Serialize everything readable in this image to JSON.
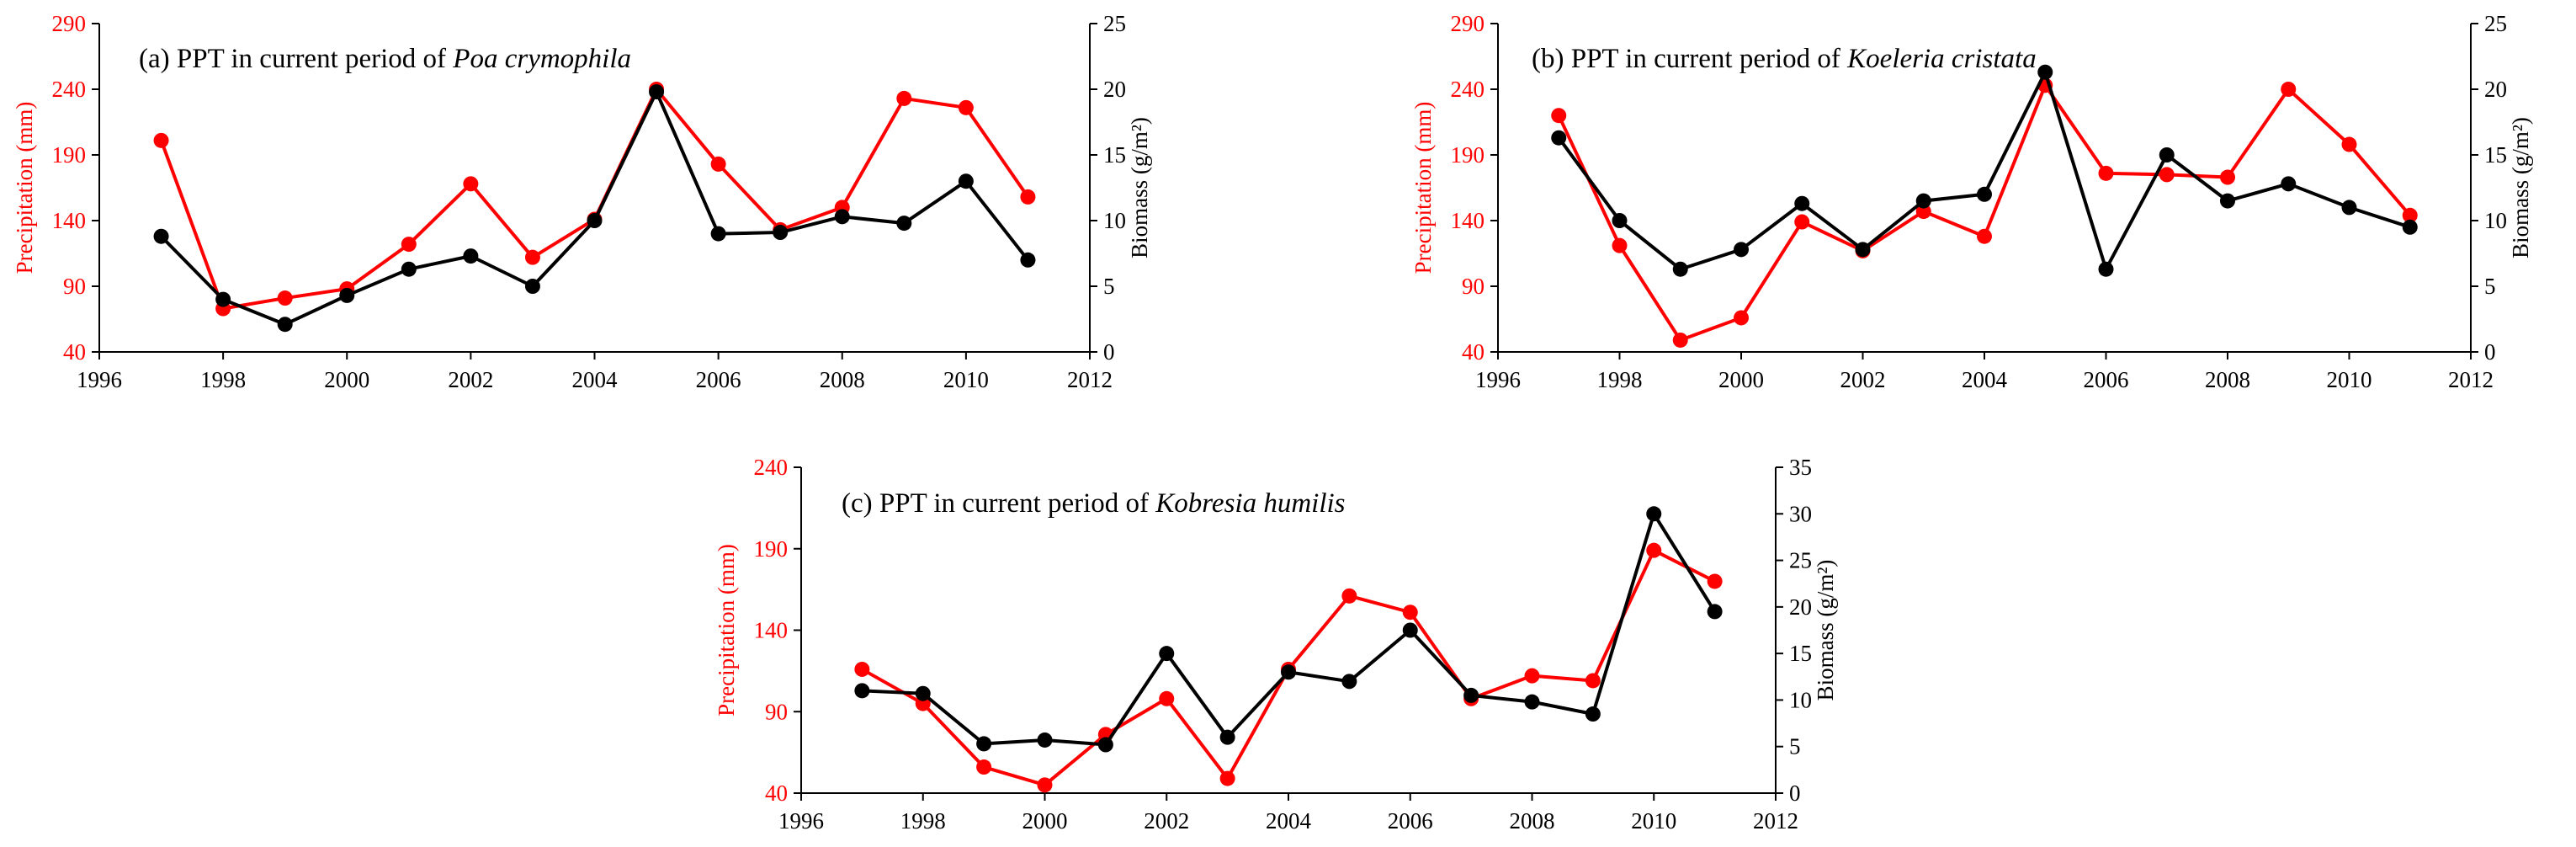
{
  "colors": {
    "precipitation": "#ff0000",
    "biomass": "#000000",
    "axes": "#000000"
  },
  "chart_data": [
    {
      "type": "line",
      "title_prefix": "(a) PPT in current period of",
      "title_species": "Poa crymophila",
      "ylabel_left": "Precipitation (mm)",
      "ylabel_right": "Biomass (g/m²)",
      "xlim": [
        1996,
        2012
      ],
      "xticks": [
        1996,
        1998,
        2000,
        2002,
        2004,
        2006,
        2008,
        2010,
        2012
      ],
      "ylim_left": [
        40,
        290
      ],
      "yticks_left": [
        40,
        90,
        140,
        190,
        240,
        290
      ],
      "ylim_right": [
        0,
        25
      ],
      "yticks_right": [
        0,
        5,
        10,
        15,
        20,
        25
      ],
      "x": [
        1997,
        1998,
        1999,
        2000,
        2001,
        2002,
        2003,
        2004,
        2005,
        2006,
        2007,
        2008,
        2009,
        2010,
        2011
      ],
      "series": [
        {
          "name": "Precipitation",
          "axis": "left",
          "color": "#ff0000",
          "values": [
            201,
            73,
            81,
            88,
            122,
            168,
            112,
            141,
            240,
            183,
            133,
            150,
            233,
            226,
            158
          ]
        },
        {
          "name": "Biomass",
          "axis": "right",
          "color": "#000000",
          "values": [
            8.8,
            4.0,
            2.1,
            4.3,
            6.3,
            7.3,
            5.0,
            10.0,
            19.8,
            9.0,
            9.1,
            10.3,
            9.8,
            13.0,
            7.0
          ]
        }
      ]
    },
    {
      "type": "line",
      "title_prefix": "(b) PPT in current period of",
      "title_species": "Koeleria cristata",
      "ylabel_left": "Precipitation (mm)",
      "ylabel_right": "Biomass (g/m²)",
      "xlim": [
        1996,
        2012
      ],
      "xticks": [
        1996,
        1998,
        2000,
        2002,
        2004,
        2006,
        2008,
        2010,
        2012
      ],
      "ylim_left": [
        40,
        290
      ],
      "yticks_left": [
        40,
        90,
        140,
        190,
        240,
        290
      ],
      "ylim_right": [
        0,
        25
      ],
      "yticks_right": [
        0,
        5,
        10,
        15,
        20,
        25
      ],
      "x": [
        1997,
        1998,
        1999,
        2000,
        2001,
        2002,
        2003,
        2004,
        2005,
        2006,
        2007,
        2008,
        2009,
        2010,
        2011
      ],
      "series": [
        {
          "name": "Precipitation",
          "axis": "left",
          "color": "#ff0000",
          "values": [
            220,
            121,
            49,
            66,
            139,
            117,
            147,
            128,
            243,
            176,
            175,
            173,
            240,
            198,
            144
          ]
        },
        {
          "name": "Biomass",
          "axis": "right",
          "color": "#000000",
          "values": [
            16.3,
            10.0,
            6.3,
            7.8,
            11.3,
            7.8,
            11.5,
            12.0,
            21.3,
            6.3,
            15.0,
            11.5,
            12.8,
            11.0,
            9.5
          ]
        }
      ]
    },
    {
      "type": "line",
      "title_prefix": "(c) PPT in current period of",
      "title_species": "Kobresia humilis",
      "ylabel_left": "Precipitation (mm)",
      "ylabel_right": "Biomass (g/m²)",
      "xlim": [
        1996,
        2012
      ],
      "xticks": [
        1996,
        1998,
        2000,
        2002,
        2004,
        2006,
        2008,
        2010,
        2012
      ],
      "ylim_left": [
        40,
        240
      ],
      "yticks_left": [
        40,
        90,
        140,
        190,
        240
      ],
      "ylim_right": [
        0,
        35
      ],
      "yticks_right": [
        0,
        5,
        10,
        15,
        20,
        25,
        30,
        35
      ],
      "x": [
        1997,
        1998,
        1999,
        2000,
        2001,
        2002,
        2003,
        2004,
        2005,
        2006,
        2007,
        2008,
        2009,
        2010,
        2011
      ],
      "series": [
        {
          "name": "Precipitation",
          "axis": "left",
          "color": "#ff0000",
          "values": [
            116,
            95,
            56,
            45,
            76,
            98,
            49,
            116,
            161,
            151,
            98,
            112,
            109,
            189,
            170
          ]
        },
        {
          "name": "Biomass",
          "axis": "right",
          "color": "#000000",
          "values": [
            11.0,
            10.7,
            5.3,
            5.7,
            5.2,
            15.0,
            6.0,
            13.0,
            12.0,
            17.5,
            10.5,
            9.8,
            8.5,
            30.0,
            19.5
          ]
        }
      ]
    }
  ]
}
